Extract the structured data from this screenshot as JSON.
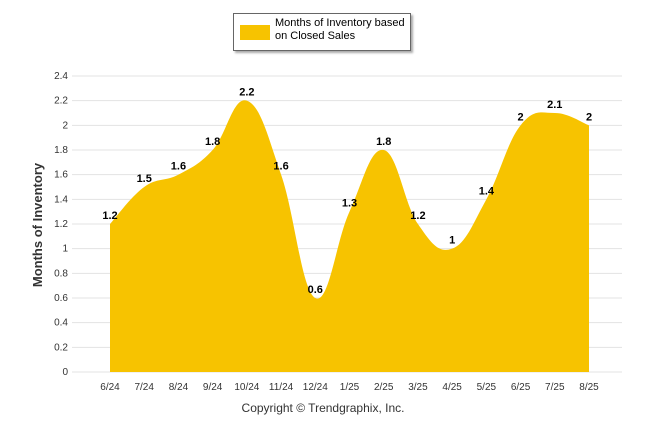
{
  "chart_data": {
    "type": "area",
    "categories": [
      "6/24",
      "7/24",
      "8/24",
      "9/24",
      "10/24",
      "11/24",
      "12/24",
      "1/25",
      "2/25",
      "3/25",
      "4/25",
      "5/25",
      "6/25",
      "7/25",
      "8/25"
    ],
    "series": [
      {
        "name": "Months of Inventory based on Closed Sales",
        "values": [
          1.2,
          1.5,
          1.6,
          1.8,
          2.2,
          1.6,
          0.6,
          1.3,
          1.8,
          1.2,
          1,
          1.4,
          2,
          2.1,
          2
        ]
      }
    ],
    "data_labels": [
      "1.2",
      "1.5",
      "1.6",
      "1.8",
      "2.2",
      "1.6",
      "0.6",
      "1.3",
      "1.8",
      "1.2",
      "1",
      "1.4",
      "2",
      "2.1",
      "2"
    ],
    "yticks": [
      "0",
      "0.2",
      "0.4",
      "0.6",
      "0.8",
      "1",
      "1.2",
      "1.4",
      "1.6",
      "1.8",
      "2",
      "2.2",
      "2.4"
    ],
    "ylim": [
      0,
      2.4
    ],
    "ylabel": "Months of Inventory",
    "xlabel": "",
    "grid": "horizontal",
    "legend_position": "top-center",
    "fill_color": "#F7C300"
  },
  "legend": {
    "label": "Months of Inventory based on Closed Sales"
  },
  "footer": {
    "copyright": "Copyright © Trendgraphix, Inc."
  }
}
